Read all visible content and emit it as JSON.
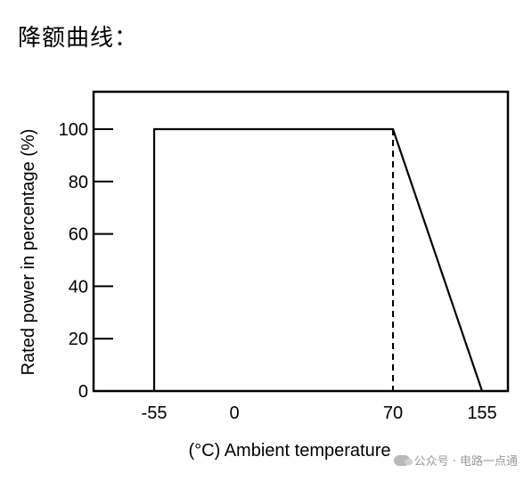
{
  "heading": "降额曲线：",
  "watermark": "公众号 · 电路一点通",
  "chart_data": {
    "type": "line",
    "xlabel": "(°C) Ambient temperature",
    "ylabel": "Rated power in percentage (%)",
    "x_ticks": [
      "-55",
      "0",
      "70",
      "155"
    ],
    "y_ticks": [
      "0",
      "20",
      "40",
      "60",
      "80",
      "100"
    ],
    "series": [
      {
        "x": [
          -55,
          -55,
          70,
          155
        ],
        "y": [
          0,
          100,
          100,
          0
        ]
      }
    ],
    "reference_lines": [
      {
        "x": -55,
        "style": "dashed"
      },
      {
        "x": 70,
        "style": "dashed"
      }
    ],
    "ylim": [
      0,
      110
    ],
    "grid": false
  }
}
